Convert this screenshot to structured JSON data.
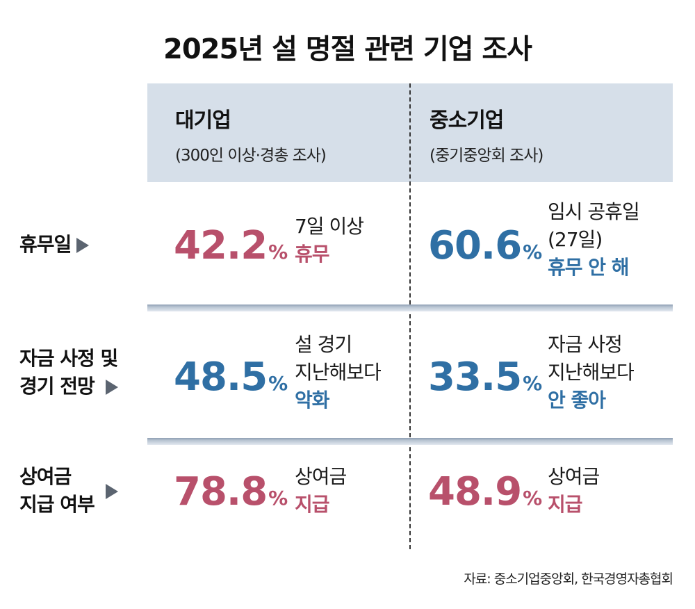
{
  "title": "2025년 설 명절 관련 기업 조사",
  "columns": [
    {
      "name": "대기업",
      "sub": "(300인 이상·경총 조사)"
    },
    {
      "name": "중소기업",
      "sub": "(중기중앙회 조사)"
    }
  ],
  "rows": [
    {
      "label": [
        "휴무일"
      ],
      "large": {
        "value": "42.2",
        "unit": "%",
        "lines": [
          "7일 이상"
        ],
        "emph": "휴무"
      },
      "small": {
        "value": "60.6",
        "unit": "%",
        "lines": [
          "임시 공휴일",
          "(27일)"
        ],
        "emph": "휴무 안 해"
      }
    },
    {
      "label": [
        "자금 사정 및",
        "경기 전망"
      ],
      "large": {
        "value": "48.5",
        "unit": "%",
        "lines": [
          "설 경기",
          "지난해보다"
        ],
        "emph": "악화"
      },
      "small": {
        "value": "33.5",
        "unit": "%",
        "lines": [
          "자금 사정",
          "지난해보다"
        ],
        "emph": "안 좋아"
      }
    },
    {
      "label": [
        "상여금",
        "지급 여부"
      ],
      "large": {
        "value": "78.8",
        "unit": "%",
        "lines": [
          "상여금"
        ],
        "emph": "지급"
      },
      "small": {
        "value": "48.9",
        "unit": "%",
        "lines": [
          "상여금"
        ],
        "emph": "지급"
      }
    }
  ],
  "source": "자료: 중소기업중앙회, 한국경영자총협회",
  "colors": {
    "red": "#b8506b",
    "blue": "#2f6fa4",
    "header_bg": "#d6dfe9",
    "arrow": "#5b6470"
  }
}
